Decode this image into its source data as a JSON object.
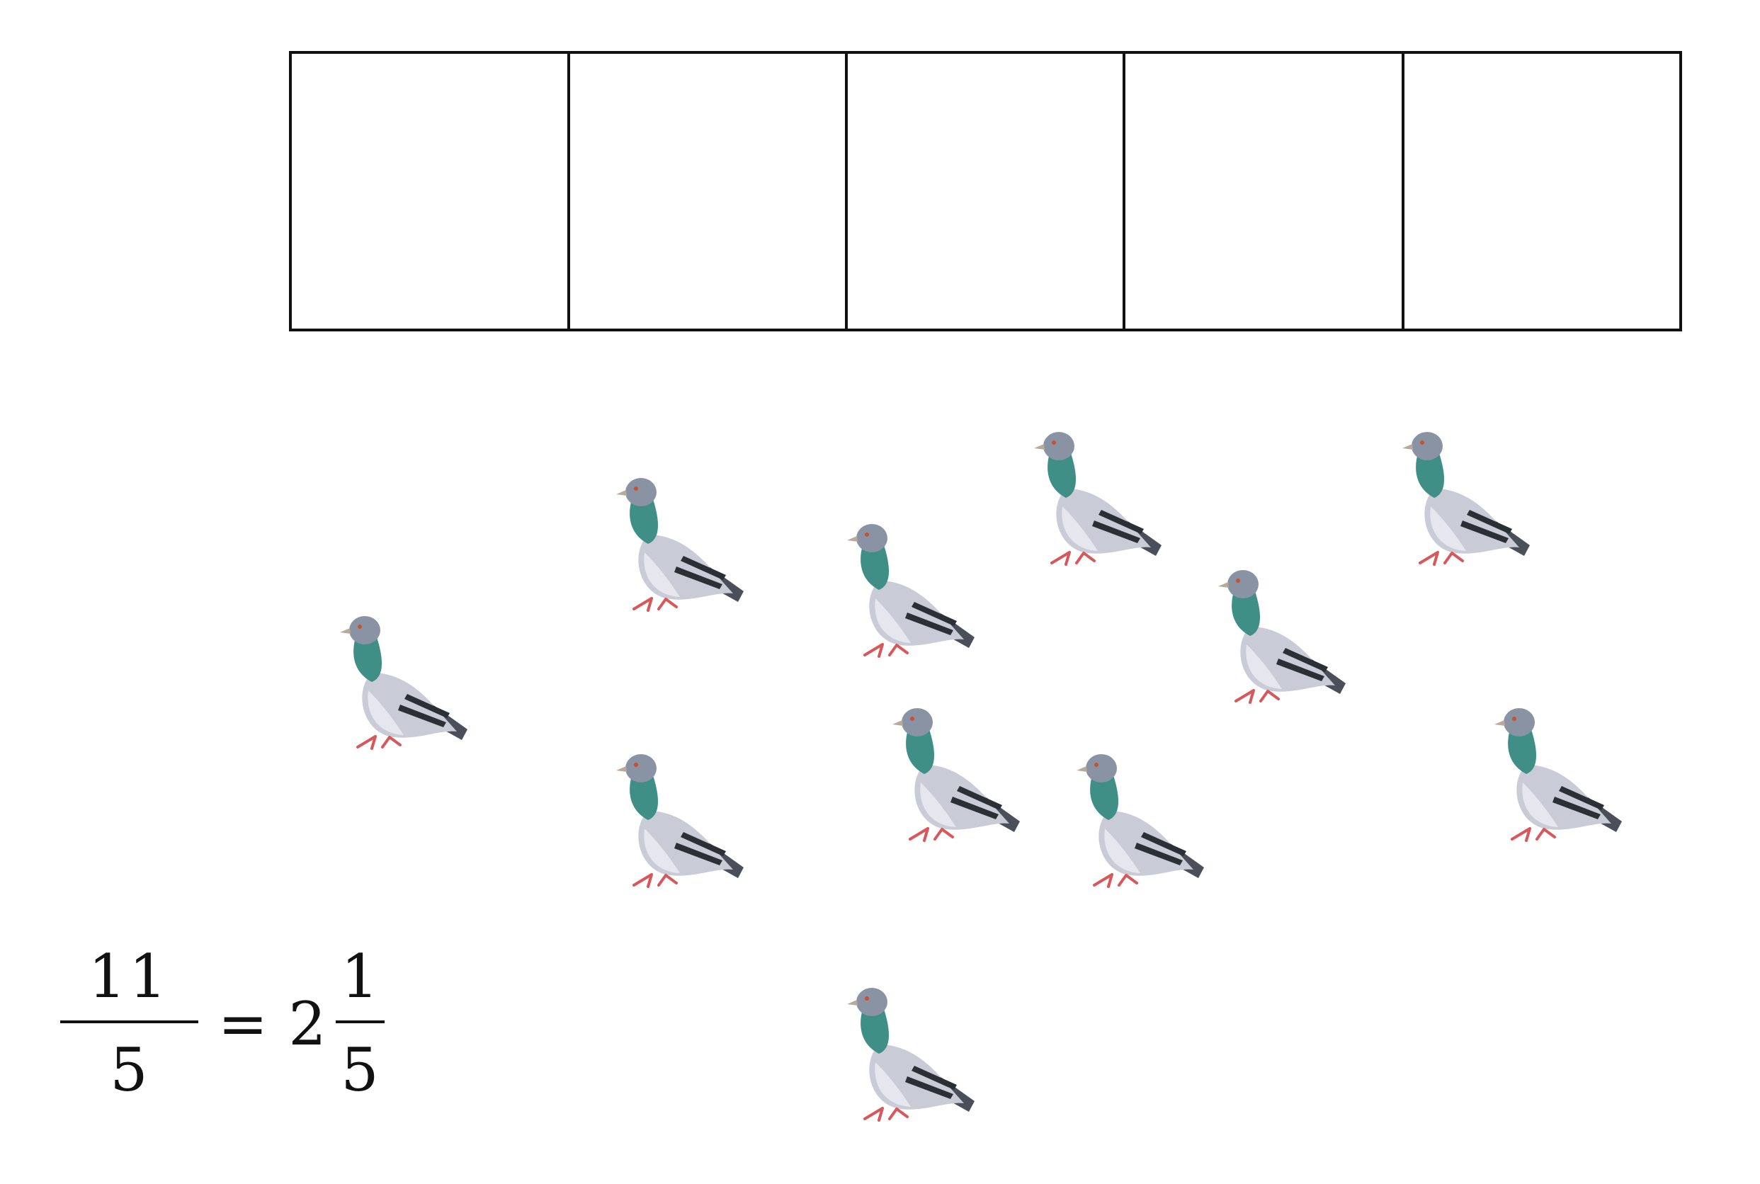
{
  "boxes": {
    "count": 5,
    "stroke": "#111111"
  },
  "pigeons": {
    "count": 11,
    "icon": "pigeon-icon",
    "colors": {
      "body": "#c9cbd6",
      "belly": "#e6e7ee",
      "head": "#8a93a3",
      "neck": "#3f8f86",
      "wing_bar": "#2b2f36",
      "tail": "#4a4f59",
      "feet": "#d8575a",
      "beak": "#b9a99a"
    }
  },
  "equation": {
    "lhs_numerator": "11",
    "lhs_denominator": "5",
    "equals": "=",
    "whole": "2",
    "rhs_numerator": "1",
    "rhs_denominator": "5"
  }
}
